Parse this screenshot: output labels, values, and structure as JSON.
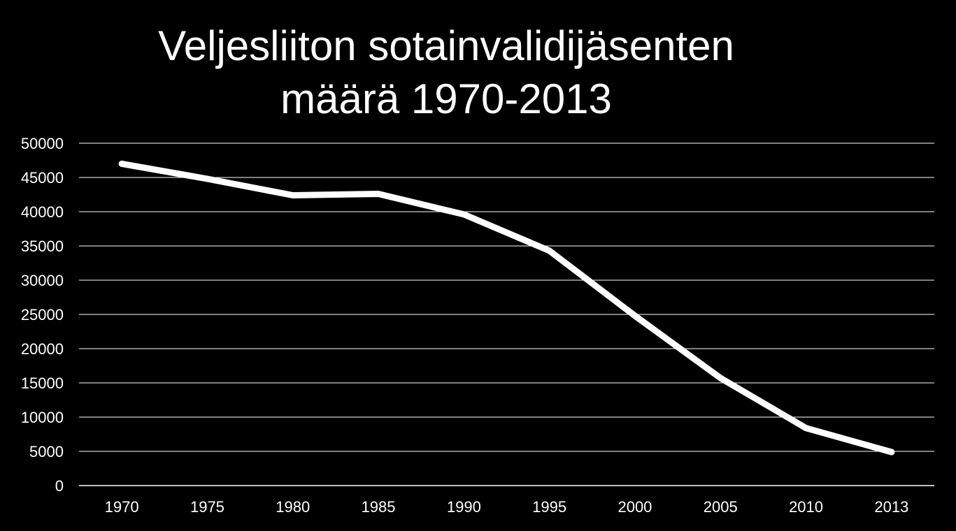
{
  "chart_data": {
    "type": "line",
    "title_lines": [
      "Veljesliiton sotainvalidijäsenten",
      "määrä 1970-2013"
    ],
    "categories": [
      "1970",
      "1975",
      "1980",
      "1985",
      "1990",
      "1995",
      "2000",
      "2005",
      "2010",
      "2013"
    ],
    "series": [
      {
        "values": [
          47000,
          44800,
          42400,
          42600,
          39600,
          34300,
          24800,
          15700,
          8400,
          4900
        ]
      }
    ],
    "ylim": [
      0,
      50000
    ],
    "yticks": [
      0,
      5000,
      10000,
      15000,
      20000,
      25000,
      30000,
      35000,
      40000,
      45000,
      50000
    ],
    "grid": true,
    "legend": "none",
    "colors": {
      "background": "#000000",
      "line": "#ffffff",
      "grid": "#ffffff",
      "text": "#ffffff"
    }
  }
}
